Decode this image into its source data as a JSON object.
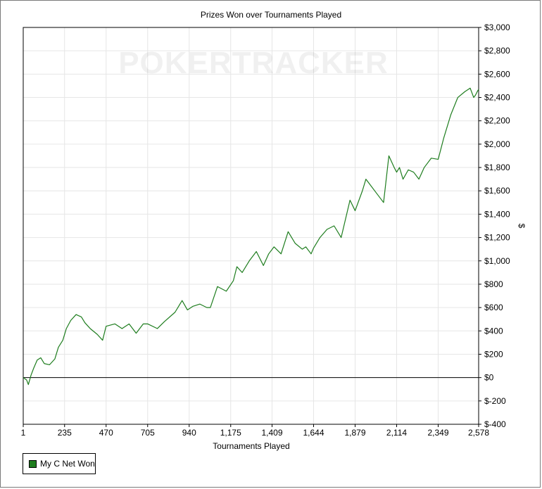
{
  "chart_data": {
    "type": "line",
    "title": "Prizes Won over Tournaments Played",
    "watermark": "POKERTRACKER",
    "xlabel": "Tournaments Played",
    "ylabel": "$",
    "xlim": [
      1,
      2578
    ],
    "ylim": [
      -400,
      3000
    ],
    "x_ticks": [
      1,
      235,
      470,
      705,
      940,
      1175,
      1409,
      1644,
      1879,
      2114,
      2349,
      2578
    ],
    "x_tick_labels": [
      "1",
      "235",
      "470",
      "705",
      "940",
      "1,175",
      "1,409",
      "1,644",
      "1,879",
      "2,114",
      "2,349",
      "2,578"
    ],
    "y_ticks": [
      -400,
      -200,
      0,
      200,
      400,
      600,
      800,
      1000,
      1200,
      1400,
      1600,
      1800,
      2000,
      2200,
      2400,
      2600,
      2800,
      3000
    ],
    "y_tick_labels": [
      "$-400",
      "$-200",
      "$0",
      "$200",
      "$400",
      "$600",
      "$800",
      "$1,000",
      "$1,200",
      "$1,400",
      "$1,600",
      "$1,800",
      "$2,000",
      "$2,200",
      "$2,400",
      "$2,600",
      "$2,800",
      "$3,000"
    ],
    "grid": true,
    "legend_position": "bottom-left",
    "series": [
      {
        "name": "My C Net Won",
        "color": "#1e7d1e",
        "x": [
          1,
          20,
          30,
          45,
          60,
          80,
          100,
          120,
          150,
          180,
          200,
          225,
          245,
          270,
          300,
          330,
          350,
          380,
          420,
          450,
          470,
          520,
          560,
          600,
          640,
          680,
          705,
          760,
          800,
          860,
          900,
          930,
          960,
          1000,
          1040,
          1060,
          1100,
          1150,
          1190,
          1210,
          1240,
          1280,
          1320,
          1360,
          1390,
          1420,
          1460,
          1500,
          1540,
          1580,
          1600,
          1630,
          1644,
          1680,
          1720,
          1760,
          1800,
          1850,
          1879,
          1920,
          1940,
          1960,
          2000,
          2040,
          2070,
          2100,
          2114,
          2130,
          2150,
          2180,
          2210,
          2240,
          2270,
          2310,
          2349,
          2380,
          2420,
          2460,
          2500,
          2530,
          2550,
          2560,
          2570,
          2578
        ],
        "y": [
          0,
          -20,
          -60,
          20,
          80,
          150,
          170,
          120,
          110,
          160,
          260,
          320,
          420,
          490,
          540,
          520,
          470,
          420,
          370,
          320,
          440,
          460,
          420,
          460,
          380,
          460,
          460,
          420,
          480,
          560,
          660,
          580,
          610,
          630,
          600,
          600,
          780,
          740,
          830,
          950,
          900,
          1000,
          1080,
          960,
          1060,
          1120,
          1060,
          1250,
          1150,
          1100,
          1120,
          1060,
          1110,
          1200,
          1270,
          1300,
          1200,
          1520,
          1430,
          1600,
          1700,
          1660,
          1580,
          1500,
          1900,
          1800,
          1760,
          1800,
          1700,
          1780,
          1760,
          1700,
          1800,
          1880,
          1870,
          2050,
          2250,
          2400,
          2450,
          2480,
          2400,
          2420,
          2450,
          2470
        ]
      }
    ]
  }
}
